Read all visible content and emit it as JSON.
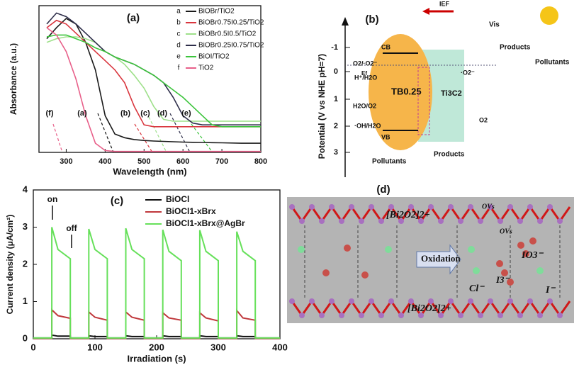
{
  "chart_data": [
    {
      "type": "line",
      "title": "(a)",
      "x_label": "Wavelength (nm)",
      "y_label": "Absorbance (a.u.)",
      "x": [
        250,
        275,
        300,
        325,
        350,
        375,
        400,
        425,
        450,
        475,
        500,
        525,
        550,
        575,
        600,
        625,
        650,
        675,
        700,
        750,
        800
      ],
      "xlim": [
        230,
        800
      ],
      "ylim": [
        0,
        0.8
      ],
      "xticks": [
        300,
        400,
        500,
        600,
        700,
        800
      ],
      "series": [
        {
          "key": "a",
          "name": "BiOBr/TiO2",
          "color": "#1a1a1a",
          "values": [
            0.62,
            0.68,
            0.73,
            0.7,
            0.6,
            0.45,
            0.2,
            0.1,
            0.08,
            0.07,
            0.065,
            0.062,
            0.06,
            0.058,
            0.056,
            0.055,
            0.054,
            0.053,
            0.052,
            0.05,
            0.05
          ]
        },
        {
          "key": "b",
          "name": "BiOBr0.75I0.25/TiO2",
          "color": "#d9363e",
          "values": [
            0.68,
            0.72,
            0.7,
            0.65,
            0.6,
            0.55,
            0.5,
            0.45,
            0.38,
            0.25,
            0.15,
            0.14,
            0.14,
            0.14,
            0.14,
            0.14,
            0.14,
            0.14,
            0.14,
            0.14,
            0.14
          ]
        },
        {
          "key": "c",
          "name": "BiOBr0.5I0.5/TiO2",
          "color": "#9ee08a",
          "values": [
            0.6,
            0.62,
            0.63,
            0.63,
            0.62,
            0.6,
            0.55,
            0.52,
            0.48,
            0.42,
            0.35,
            0.25,
            0.18,
            0.17,
            0.17,
            0.17,
            0.17,
            0.17,
            0.17,
            0.17,
            0.17
          ]
        },
        {
          "key": "d",
          "name": "BiOBr0.25I0.75/TiO2",
          "color": "#2e2e4a",
          "values": [
            0.7,
            0.76,
            0.74,
            0.7,
            0.65,
            0.6,
            0.55,
            0.52,
            0.5,
            0.48,
            0.45,
            0.42,
            0.38,
            0.3,
            0.2,
            0.16,
            0.15,
            0.15,
            0.15,
            0.15,
            0.15
          ]
        },
        {
          "key": "e",
          "name": "BiOI/TiO2",
          "color": "#3cc43c",
          "values": [
            0.63,
            0.64,
            0.64,
            0.62,
            0.6,
            0.57,
            0.55,
            0.52,
            0.5,
            0.48,
            0.45,
            0.42,
            0.38,
            0.34,
            0.3,
            0.25,
            0.2,
            0.15,
            0.14,
            0.14,
            0.14
          ]
        },
        {
          "key": "f",
          "name": "TiO2",
          "color": "#e8608a",
          "values": [
            0.68,
            0.64,
            0.55,
            0.4,
            0.2,
            0.05,
            0.01,
            0.005,
            0.005,
            0.005,
            0.005,
            0.005,
            0.005,
            0.005,
            0.005,
            0.005,
            0.005,
            0.005,
            0.005,
            0.005,
            0.005
          ]
        }
      ],
      "annotations": [
        "(f)",
        "(a)",
        "(b)",
        "(c)",
        "(d)",
        "(e)"
      ]
    },
    {
      "type": "line",
      "title": "(c)",
      "x_label": "Irradiation (s)",
      "y_label": "Current density (μA/cm²)",
      "x": [
        0,
        30,
        30,
        40,
        60,
        60,
        90,
        90,
        100,
        120,
        120,
        150,
        150,
        160,
        180,
        180,
        210,
        210,
        220,
        240,
        240,
        270,
        270,
        280,
        300,
        300,
        330,
        330,
        340,
        360,
        360,
        400
      ],
      "xlim": [
        0,
        400
      ],
      "ylim": [
        0,
        4
      ],
      "xticks": [
        0,
        100,
        200,
        300,
        400
      ],
      "yticks": [
        0,
        1,
        2,
        3,
        4
      ],
      "series": [
        {
          "name": "BiOCl",
          "color": "#111111",
          "values": [
            0.02,
            0.02,
            0.1,
            0.07,
            0.07,
            0.02,
            0.02,
            0.08,
            0.06,
            0.06,
            0.02,
            0.02,
            0.08,
            0.06,
            0.06,
            0.02,
            0.02,
            0.08,
            0.06,
            0.06,
            0.02,
            0.02,
            0.08,
            0.06,
            0.06,
            0.02,
            0.02,
            0.08,
            0.06,
            0.06,
            0.02,
            0.02
          ]
        },
        {
          "name": "BiOCl1-xBrx",
          "color": "#c0383c",
          "values": [
            0.01,
            0.01,
            0.78,
            0.62,
            0.55,
            0.01,
            0.01,
            0.72,
            0.58,
            0.5,
            0.01,
            0.01,
            0.72,
            0.58,
            0.5,
            0.01,
            0.01,
            0.7,
            0.56,
            0.5,
            0.01,
            0.01,
            0.7,
            0.56,
            0.48,
            0.01,
            0.01,
            0.76,
            0.56,
            0.5,
            0.01,
            0.01
          ]
        },
        {
          "name": "BiOCl1-xBrx@AgBr",
          "color": "#66e05a",
          "values": [
            0.02,
            0.02,
            3.0,
            2.4,
            2.15,
            0.02,
            0.02,
            2.95,
            2.4,
            2.15,
            0.02,
            0.02,
            2.97,
            2.4,
            2.15,
            0.02,
            0.02,
            2.93,
            2.35,
            2.1,
            0.02,
            0.02,
            2.92,
            2.35,
            2.1,
            0.02,
            0.02,
            2.88,
            2.35,
            2.1,
            0.02,
            0.02
          ]
        }
      ],
      "annotations": [
        "on",
        "off"
      ]
    }
  ],
  "diagrams": {
    "b": {
      "title": "(b)",
      "axis_label": "Potential (V vs NHE pH=7)",
      "ticks": [
        "-1",
        "0",
        "1",
        "2",
        "3"
      ],
      "labels": {
        "ief": "IEF",
        "vis": "Vis",
        "cb": "CB",
        "vb": "VB",
        "tb": "TB0.25",
        "ti3c2": "Ti3C2",
        "ef": "Ef",
        "o2_o2": "O2/·O2⁻",
        "h_h2o": "H⁺/H2O",
        "h2o_o2": "H2O/O2",
        "oh_h2o": "·OH/H2O",
        "o2": "O2",
        "o2rad": "·O2⁻",
        "products_top": "Products",
        "pollutants_top": "Pollutants",
        "products_bottom": "Products",
        "pollutants_bottom": "Pollutants"
      }
    },
    "d": {
      "title": "(d)",
      "layer_top": "[Bi2O2]2+",
      "layer_bottom": "[Bi2O2]2+",
      "ovs_1": "OVs",
      "ovs_2": "OVs",
      "io3": "IO3⁻",
      "oxidation": "Oxidation",
      "cl": "Cl⁻",
      "i3": "I3⁻",
      "i": "I⁻"
    }
  }
}
